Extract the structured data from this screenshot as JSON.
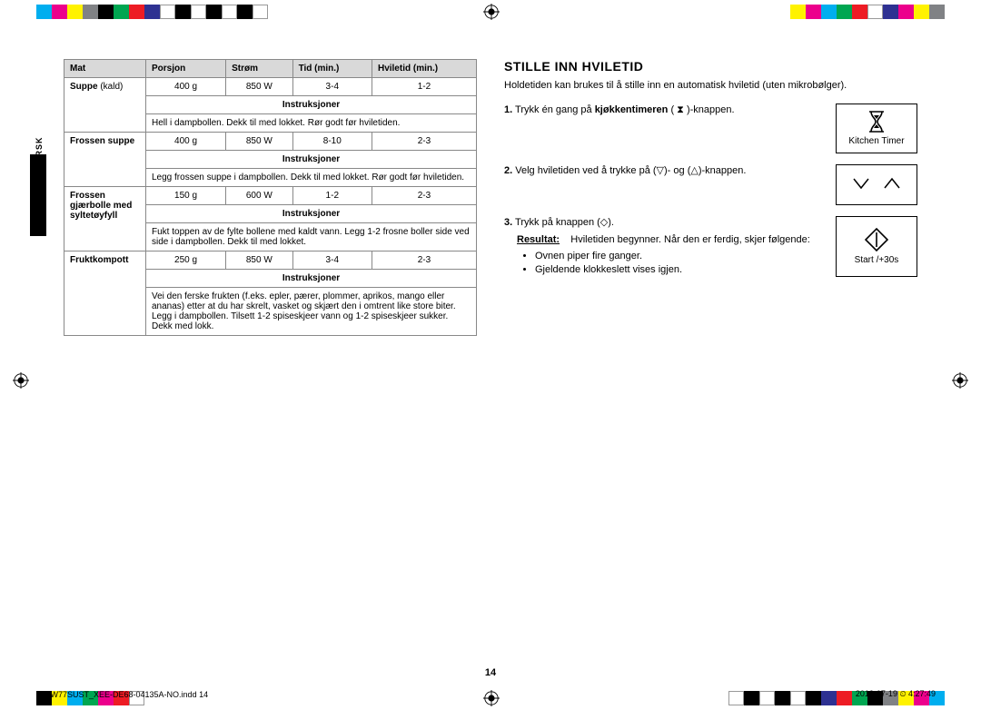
{
  "colorbars": {
    "top_left": [
      "#00aeef",
      "#ec008c",
      "#fff200",
      "#808285",
      "#000000",
      "#00a651",
      "#ed1c24",
      "#2e3192",
      "#ffffff",
      "#000000",
      "#ffffff",
      "#000000",
      "#ffffff",
      "#000000",
      "#ffffff"
    ],
    "top_right": [
      "#fff200",
      "#ec008c",
      "#00aeef",
      "#00a651",
      "#ed1c24",
      "#ffffff",
      "#2e3192",
      "#ec008c",
      "#fff200",
      "#808285"
    ],
    "bottom_left": [
      "#000000",
      "#fff200",
      "#00aeef",
      "#00a651",
      "#ec008c",
      "#ed1c24",
      "#ffffff"
    ],
    "bottom_right": [
      "#ffffff",
      "#000000",
      "#ffffff",
      "#000000",
      "#ffffff",
      "#000000",
      "#2e3192",
      "#ed1c24",
      "#00a651",
      "#000000",
      "#808285",
      "#fff200",
      "#ec008c",
      "#00aeef"
    ]
  },
  "side_label": "NORSK",
  "table": {
    "headers": [
      "Mat",
      "Porsjon",
      "Strøm",
      "Tid (min.)",
      "Hviletid (min.)"
    ],
    "rows": [
      {
        "food_html": "<b>Suppe</b> (kald)",
        "portion": "400 g",
        "power": "850 W",
        "time": "3-4",
        "rest": "1-2",
        "instr": "Hell i dampbollen. Dekk til med lokket. Rør godt før hviletiden."
      },
      {
        "food_html": "<b>Frossen suppe</b>",
        "portion": "400 g",
        "power": "850 W",
        "time": "8-10",
        "rest": "2-3",
        "instr": "Legg frossen suppe i dampbollen. Dekk til med lokket. Rør godt før hviletiden."
      },
      {
        "food_html": "<b>Frossen gjærbolle med syltetøyfyll</b>",
        "portion": "150 g",
        "power": "600 W",
        "time": "1-2",
        "rest": "2-3",
        "instr": "Fukt toppen av de fylte bollene med kaldt vann. Legg 1-2 frosne boller side ved side i dampbollen. Dekk til med lokket."
      },
      {
        "food_html": "<b>Fruktkompott</b>",
        "portion": "250 g",
        "power": "850 W",
        "time": "3-4",
        "rest": "2-3",
        "instr": "Vei den ferske frukten (f.eks. epler, pærer, plommer, aprikos, mango eller ananas) etter at du har skrelt, vasket og skjært den i omtrent like store biter. Legg i dampbollen. Tilsett 1-2 spiseskjeer vann og 1-2 spiseskjeer sukker. Dekk med lokk."
      }
    ],
    "instr_label": "Instruksjoner"
  },
  "section": {
    "title": "STILLE INN HVILETID",
    "intro": "Holdetiden kan brukes til å stille inn en automatisk hviletid (uten mikrobølger).",
    "step1_pre": "Trykk én gang på ",
    "step1_bold": "kjøkkentimeren",
    "step1_post": " ( ⧗ )-knappen.",
    "btn1": "Kitchen Timer",
    "step2": "Velg hviletiden ved å trykke på (▽)- og (△)-knappen.",
    "step3": "Trykk på knappen (◇).",
    "result_label": "Resultat:",
    "result_text": "Hviletiden begynner. Når den er ferdig, skjer følgende:",
    "result_b1": "Ovnen piper fire ganger.",
    "result_b2": "Gjeldende klokkeslett vises igjen.",
    "btn3": "Start /+30s"
  },
  "page_number": "14",
  "footer_left": "FW77SUST_XEE-DE68-04135A-NO.indd   14",
  "footer_right": "2012-07-19   ⏲ 4:27:49"
}
